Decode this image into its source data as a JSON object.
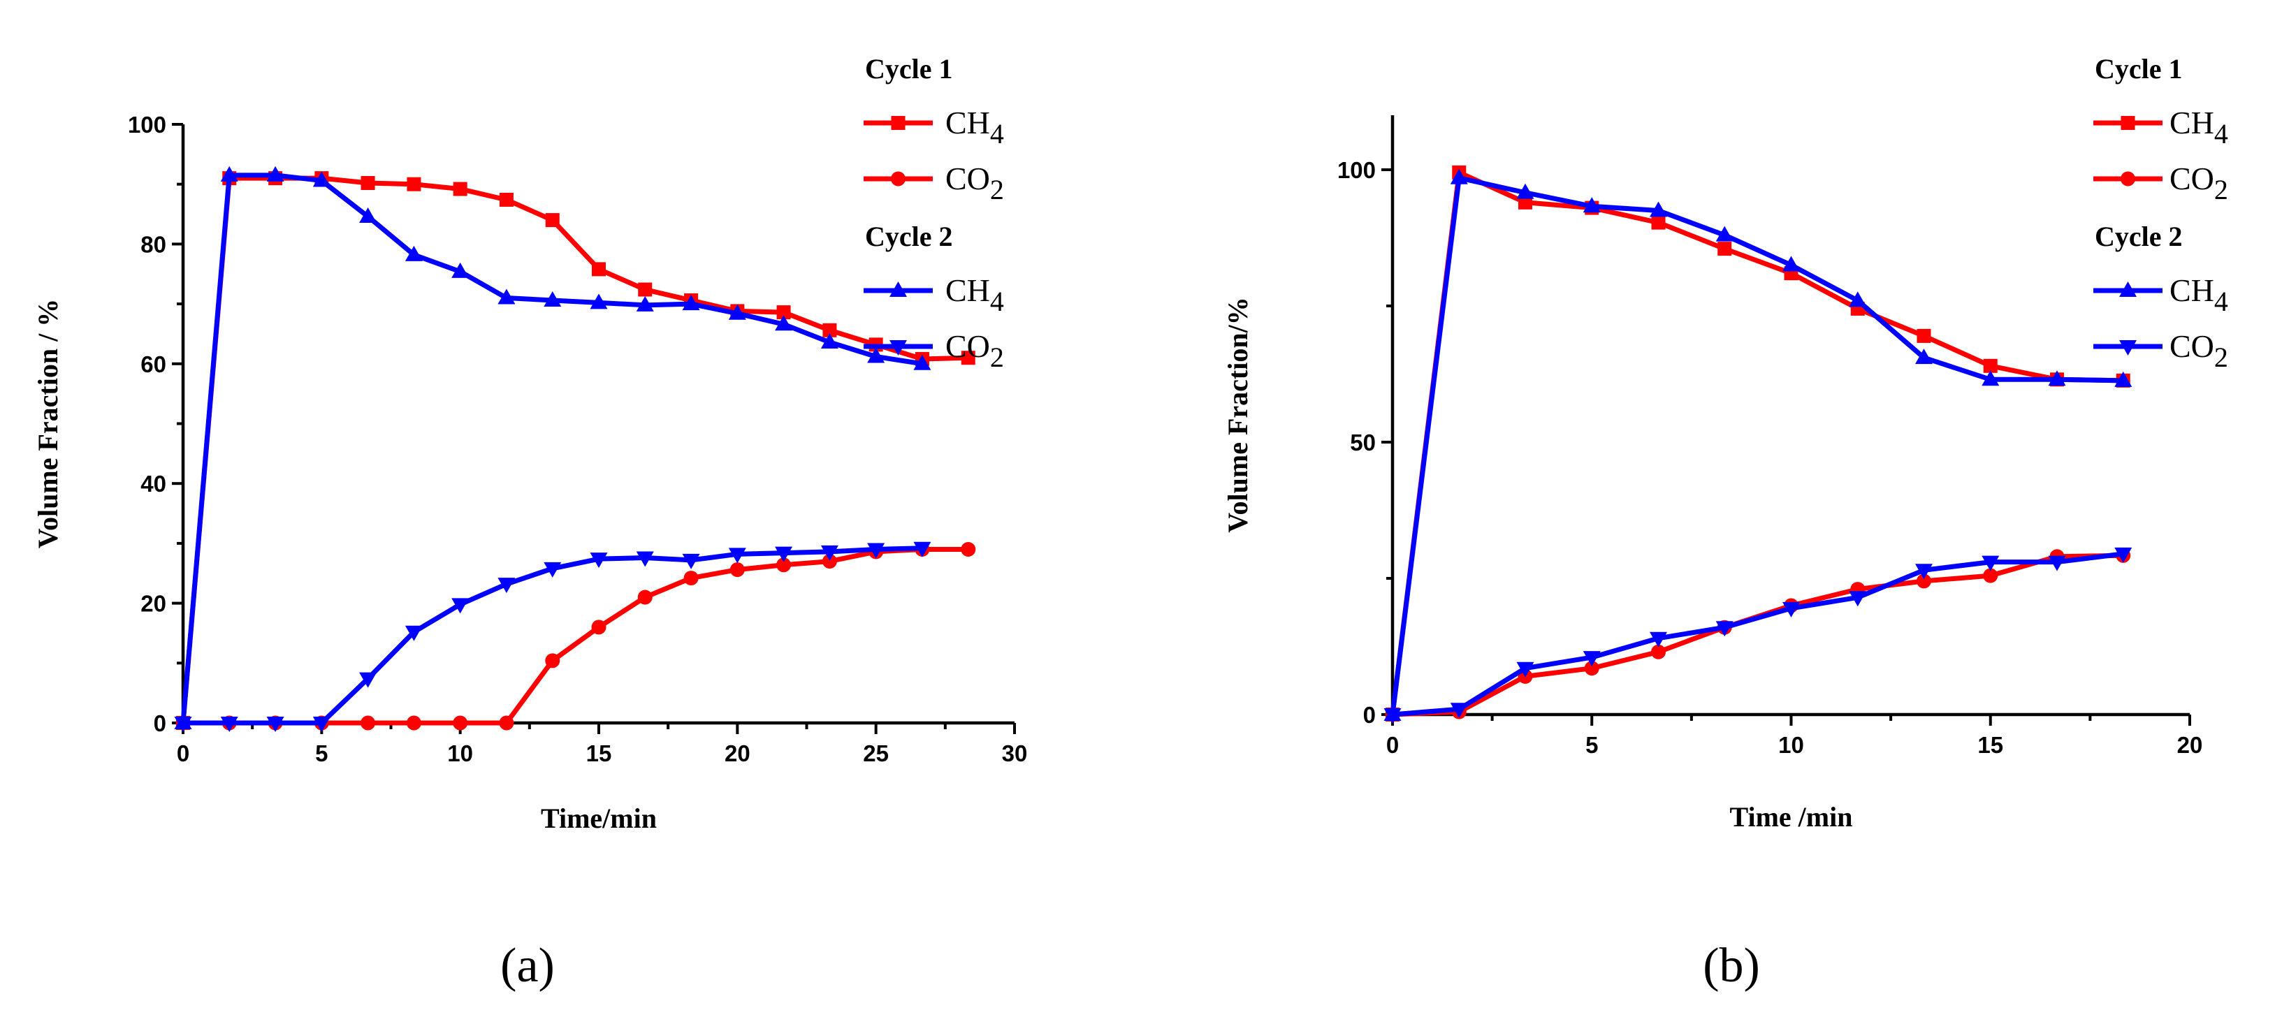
{
  "colors": {
    "cycle1": "#ff0000",
    "cycle2": "#0000ff",
    "axis": "#000000"
  },
  "chart_data": [
    {
      "type": "line",
      "panel_label": "(a)",
      "xlabel": "Time/min",
      "ylabel": "Volume Fraction / %",
      "xlim": [
        0,
        30
      ],
      "ylim": [
        0,
        100
      ],
      "xticks": [
        0,
        5,
        10,
        15,
        20,
        25,
        30
      ],
      "yticks": [
        0,
        20,
        40,
        60,
        80,
        100
      ],
      "grid": false,
      "legend_position": "top-right",
      "legend_groups": [
        {
          "title": "Cycle 1",
          "entries": [
            {
              "text": "CH",
              "sub": "4",
              "series": 0
            },
            {
              "text": "CO",
              "sub": "2",
              "series": 1
            }
          ]
        },
        {
          "title": "Cycle 2",
          "entries": [
            {
              "text": "CH",
              "sub": "4",
              "series": 2
            },
            {
              "text": "CO",
              "sub": "2",
              "series": 3
            }
          ]
        }
      ],
      "series": [
        {
          "name": "Cycle 1 CH4",
          "color": "#ff0000",
          "marker": "square",
          "x": [
            0,
            1.67,
            3.33,
            5,
            6.67,
            8.33,
            10,
            11.67,
            13.33,
            15,
            16.67,
            18.33,
            20,
            21.67,
            23.33,
            25,
            26.67,
            28.33
          ],
          "y": [
            0,
            91,
            91,
            91,
            90.2,
            90,
            89.2,
            87.4,
            84,
            75.8,
            72.4,
            70.6,
            68.8,
            68.6,
            65.6,
            63.2,
            60.8,
            61
          ]
        },
        {
          "name": "Cycle 1 CO2",
          "color": "#ff0000",
          "marker": "circle",
          "x": [
            0,
            1.67,
            3.33,
            5,
            6.67,
            8.33,
            10,
            11.67,
            13.33,
            15,
            16.67,
            18.33,
            20,
            21.67,
            23.33,
            25,
            26.67,
            28.33
          ],
          "y": [
            0,
            0,
            0,
            0,
            0,
            0,
            0,
            0,
            10.4,
            16,
            21,
            24.2,
            25.6,
            26.4,
            27,
            28.6,
            29,
            29
          ]
        },
        {
          "name": "Cycle 2 CH4",
          "color": "#0000ff",
          "marker": "triangle-up",
          "x": [
            0,
            1.67,
            3.33,
            5,
            6.67,
            8.33,
            10,
            11.67,
            13.33,
            15,
            16.67,
            18.33,
            20,
            21.67,
            23.33,
            25,
            26.67
          ],
          "y": [
            0,
            91.5,
            91.5,
            90.6,
            84.6,
            78.2,
            75.4,
            71,
            70.6,
            70.2,
            69.8,
            70,
            68.4,
            66.6,
            63.6,
            61.2,
            60
          ]
        },
        {
          "name": "Cycle 2 CO2",
          "color": "#0000ff",
          "marker": "triangle-down",
          "x": [
            0,
            1.67,
            3.33,
            5,
            6.67,
            8.33,
            10,
            11.67,
            13.33,
            15,
            16.67,
            18.33,
            20,
            21.67,
            23.33,
            25,
            26.67
          ],
          "y": [
            0,
            0,
            0,
            0,
            7.4,
            15.2,
            19.8,
            23.2,
            25.8,
            27.4,
            27.6,
            27.2,
            28.2,
            28.4,
            28.6,
            29,
            29.2
          ]
        }
      ]
    },
    {
      "type": "line",
      "panel_label": "(b)",
      "xlabel": "Time /min",
      "ylabel": "Volume Fraction/%",
      "xlim": [
        0,
        20
      ],
      "ylim": [
        0,
        110
      ],
      "xticks": [
        0,
        5,
        10,
        15,
        20
      ],
      "yticks": [
        0,
        50,
        100
      ],
      "grid": false,
      "legend_position": "top-right",
      "legend_groups": [
        {
          "title": "Cycle 1",
          "entries": [
            {
              "text": "CH",
              "sub": "4",
              "series": 0
            },
            {
              "text": "CO",
              "sub": "2",
              "series": 1
            }
          ]
        },
        {
          "title": "Cycle 2",
          "entries": [
            {
              "text": "CH",
              "sub": "4",
              "series": 2
            },
            {
              "text": "CO",
              "sub": "2",
              "series": 3
            }
          ]
        }
      ],
      "series": [
        {
          "name": "Cycle 1 CH4",
          "color": "#ff0000",
          "marker": "square",
          "x": [
            0,
            1.67,
            3.33,
            5,
            6.67,
            8.33,
            10,
            11.67,
            13.33,
            15,
            16.67,
            18.33
          ],
          "y": [
            0,
            99.5,
            94,
            93,
            90.3,
            85.5,
            81,
            74.5,
            69.5,
            64,
            61.5,
            61.3
          ]
        },
        {
          "name": "Cycle 1 CO2",
          "color": "#ff0000",
          "marker": "circle",
          "x": [
            0,
            1.67,
            3.33,
            5,
            6.67,
            8.33,
            10,
            11.67,
            13.33,
            15,
            16.67,
            18.33
          ],
          "y": [
            0,
            0.5,
            7,
            8.5,
            11.5,
            16,
            20,
            23,
            24.5,
            25.5,
            29,
            29.2
          ]
        },
        {
          "name": "Cycle 2 CH4",
          "color": "#0000ff",
          "marker": "triangle-up",
          "x": [
            0,
            1.67,
            3.33,
            5,
            6.67,
            8.33,
            10,
            11.67,
            13.33,
            15,
            16.67,
            18.33
          ],
          "y": [
            0,
            98.5,
            95.8,
            93.3,
            92.5,
            88,
            82.5,
            76,
            65.5,
            61.5,
            61.5,
            61.3
          ]
        },
        {
          "name": "Cycle 2 CO2",
          "color": "#0000ff",
          "marker": "triangle-down",
          "x": [
            0,
            1.67,
            3.33,
            5,
            6.67,
            8.33,
            10,
            11.67,
            13.33,
            15,
            16.67,
            18.33
          ],
          "y": [
            0,
            1,
            8.5,
            10.5,
            14,
            16,
            19.5,
            21.5,
            26.5,
            28,
            28,
            29.5
          ]
        }
      ]
    }
  ]
}
